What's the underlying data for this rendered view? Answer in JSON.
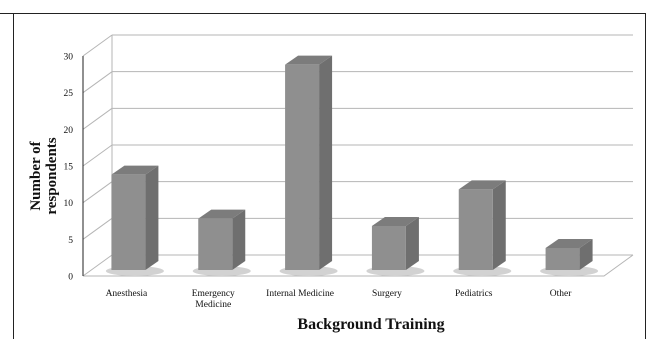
{
  "chart_data": {
    "type": "bar",
    "title": "",
    "xlabel": "Background Training",
    "ylabel": "Number of respondents",
    "ylabel_lines": [
      "Number of",
      "respondents"
    ],
    "categories": [
      "Anesthesia",
      "Emergency Medicine",
      "Internal Medicine",
      "Surgery",
      "Pediatrics",
      "Other"
    ],
    "category_lines": [
      [
        "Anesthesia"
      ],
      [
        "Emergency",
        "Medicine"
      ],
      [
        "Internal Medicine"
      ],
      [
        "Surgery"
      ],
      [
        "Pediatrics"
      ],
      [
        "Other"
      ]
    ],
    "values": [
      13,
      7,
      28,
      6,
      11,
      3
    ],
    "ylim": [
      0,
      30
    ],
    "yticks": [
      0,
      5,
      10,
      15,
      20,
      25,
      30
    ],
    "grid": true,
    "legend": "none",
    "style": "3d",
    "colors": {
      "bar_front": "#8f8f8f",
      "bar_side": "#6f6f6f",
      "bar_top": "#7c7c7c",
      "bar_shadow": "#d2d2d2",
      "grid": "#b5b5b5",
      "axis": "#222222"
    }
  }
}
